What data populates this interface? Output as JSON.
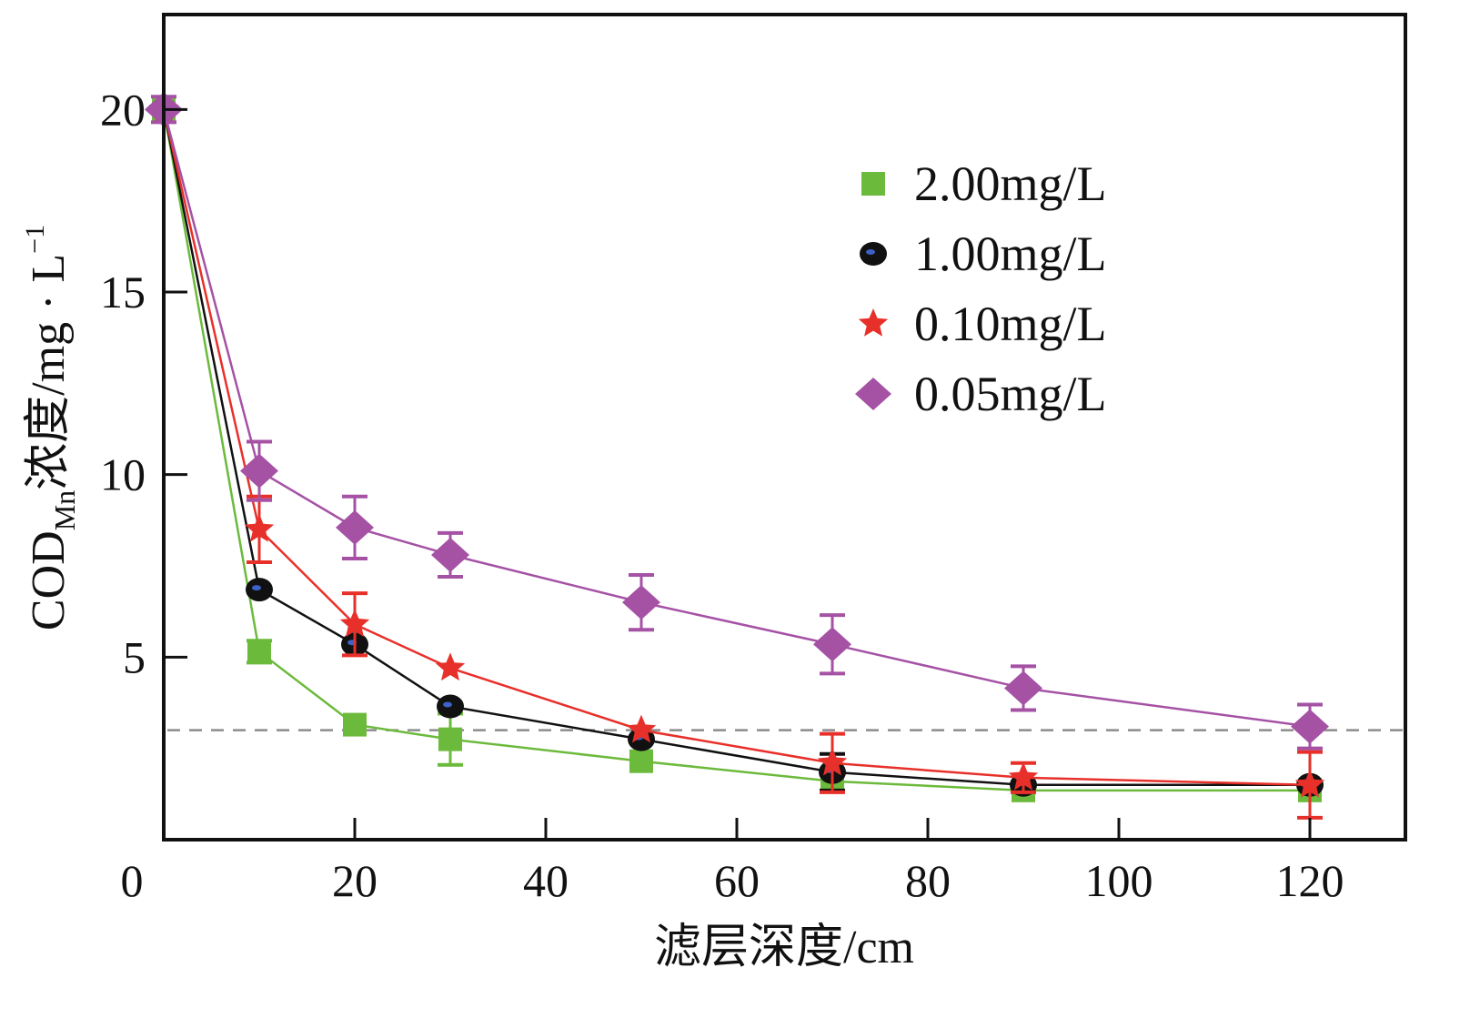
{
  "chart_data": {
    "type": "line",
    "title": "",
    "xlabel": "滤层深度/cm",
    "ylabel": {
      "main": "COD",
      "subscript": "Mn",
      "rest": "浓度/mg · L",
      "superscript": "−1"
    },
    "xlim": [
      0,
      130
    ],
    "ylim": [
      0,
      22.6
    ],
    "x_ticks": [
      0,
      20,
      40,
      60,
      80,
      100,
      120
    ],
    "x_tick_labels": [
      "0",
      "20",
      "40",
      "60",
      "80",
      "100",
      "120"
    ],
    "y_ticks": [
      5,
      10,
      15,
      20
    ],
    "y_tick_labels": [
      "5",
      "10",
      "15",
      "20"
    ],
    "grid": false,
    "legend_position": "top-right",
    "x": [
      0,
      10,
      20,
      30,
      50,
      70,
      90,
      120
    ],
    "series": [
      {
        "name": "2.00mg/L",
        "marker": "square",
        "color": "#6cba3c",
        "values": [
          20,
          5.15,
          3.15,
          2.75,
          2.15,
          1.6,
          1.35,
          1.35
        ],
        "errors": [
          0.2,
          0.3,
          0.15,
          0.7,
          0.15,
          0.2,
          0.1,
          0.15
        ]
      },
      {
        "name": "1.00mg/L",
        "marker": "circle",
        "color": "#111111",
        "values": [
          20,
          6.85,
          5.35,
          3.65,
          2.75,
          1.85,
          1.5,
          1.5
        ],
        "errors": [
          0.2,
          0.15,
          0.2,
          0.15,
          0.15,
          0.5,
          0.2,
          0.2
        ]
      },
      {
        "name": "0.10mg/L",
        "marker": "star",
        "color": "#e8302a",
        "values": [
          20,
          8.5,
          5.9,
          4.7,
          3.0,
          2.1,
          1.7,
          1.5
        ],
        "errors": [
          0.2,
          0.9,
          0.85,
          0.15,
          0.15,
          0.8,
          0.4,
          0.9
        ]
      },
      {
        "name": "0.05mg/L",
        "marker": "diamond",
        "color": "#a552a5",
        "values": [
          20,
          10.1,
          8.55,
          7.8,
          6.5,
          5.35,
          4.15,
          3.1
        ],
        "errors": [
          0.35,
          0.8,
          0.85,
          0.6,
          0.75,
          0.8,
          0.6,
          0.6
        ]
      }
    ],
    "reference_line": {
      "y": 3.0,
      "style": "dashed",
      "color": "#8c8c8c"
    }
  }
}
